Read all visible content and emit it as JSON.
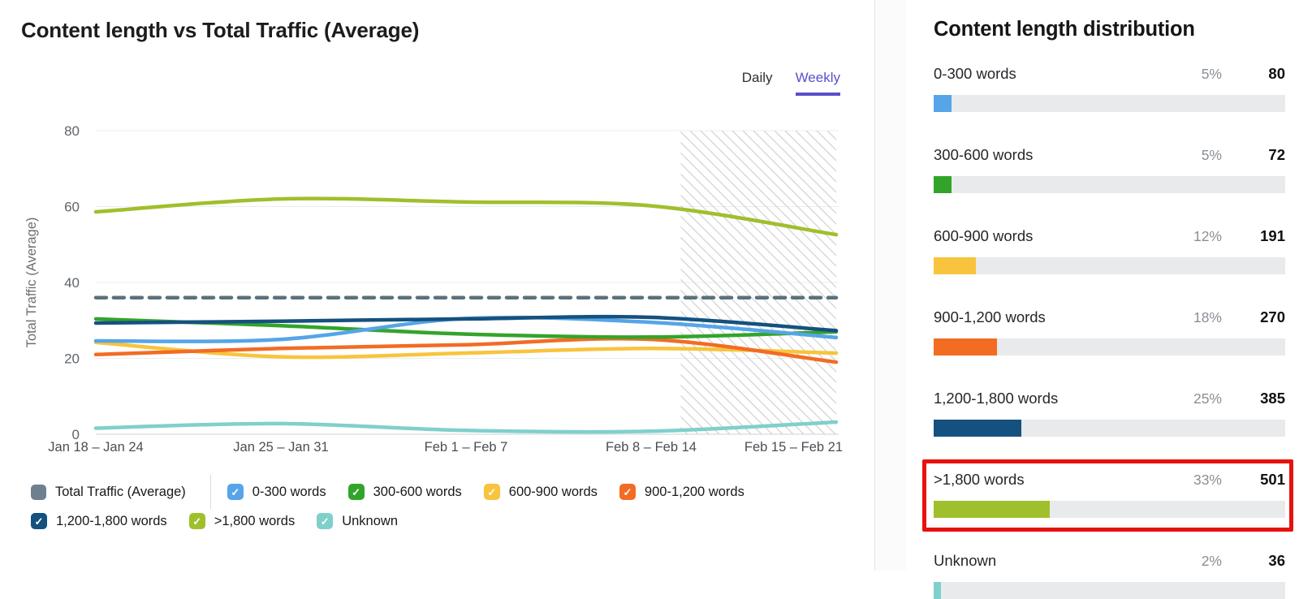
{
  "left_panel": {
    "title": "Content length vs Total Traffic (Average)",
    "toggle": {
      "daily": "Daily",
      "weekly": "Weekly",
      "selected": "Weekly",
      "accent_color": "#5a4fd0"
    }
  },
  "chart_data": {
    "type": "line",
    "title": "Content length vs Total Traffic (Average)",
    "xlabel": "",
    "ylabel": "Total Traffic (Average)",
    "ylim": [
      0,
      80
    ],
    "yticks": [
      0,
      20,
      40,
      60,
      80
    ],
    "grid": true,
    "legend_position": "bottom",
    "categories": [
      "Jan 18 – Jan 24",
      "Jan 25 – Jan 31",
      "Feb 1 – Feb 7",
      "Feb 8 – Feb 14",
      "Feb 15 – Feb 21"
    ],
    "projection_region": {
      "start_fraction": 0.79,
      "style": "diagonal-hatch",
      "hatch_color": "#d4d4d6"
    },
    "series": [
      {
        "name": "Total Traffic (Average)",
        "color": "#5d707c",
        "style": "dashed",
        "z": 8,
        "values": [
          36,
          36,
          36,
          36,
          36
        ]
      },
      {
        "name": "0-300 words",
        "color": "#55a5e8",
        "style": "solid",
        "z": 5,
        "values": [
          24.6,
          25,
          30.5,
          29.5,
          25.5
        ]
      },
      {
        "name": "300-600 words",
        "color": "#33a42b",
        "style": "solid",
        "z": 4,
        "values": [
          30.4,
          28.6,
          26.4,
          25.6,
          27
        ]
      },
      {
        "name": "600-900 words",
        "color": "#f8c43d",
        "style": "solid",
        "z": 2,
        "values": [
          24.2,
          20.4,
          21.4,
          22.6,
          21.4
        ]
      },
      {
        "name": "900-1,200 words",
        "color": "#f26c23",
        "style": "solid",
        "z": 3,
        "values": [
          21,
          22.6,
          23.6,
          25,
          19
        ]
      },
      {
        "name": "1,200-1,800 words",
        "color": "#15517f",
        "style": "solid",
        "z": 6,
        "values": [
          29.3,
          29.8,
          30.4,
          30.8,
          27.3
        ]
      },
      {
        "name": ">1,800 words",
        "color": "#a0bf2c",
        "style": "solid",
        "z": 7,
        "values": [
          58.6,
          62,
          61.2,
          60.2,
          52.6
        ]
      },
      {
        "name": "Unknown",
        "color": "#7fd0cb",
        "style": "solid",
        "z": 1,
        "values": [
          1.6,
          2.8,
          1,
          0.8,
          3.2
        ]
      }
    ]
  },
  "legend": {
    "rows": [
      [
        {
          "type": "swatch",
          "label": "Total Traffic (Average)",
          "color": "#6e8090",
          "divider_after": true
        },
        {
          "type": "checkbox",
          "label": "0-300 words",
          "color": "#55a5e8",
          "checked": true
        },
        {
          "type": "checkbox",
          "label": "300-600 words",
          "color": "#33a42b",
          "checked": true
        },
        {
          "type": "checkbox",
          "label": "600-900 words",
          "color": "#f8c43d",
          "checked": true
        },
        {
          "type": "checkbox",
          "label": "900-1,200 words",
          "color": "#f26c23",
          "checked": true
        }
      ],
      [
        {
          "type": "checkbox",
          "label": "1,200-1,800 words",
          "color": "#15517f",
          "checked": true
        },
        {
          "type": "checkbox",
          "label": ">1,800 words",
          "color": "#a0bf2c",
          "checked": true
        },
        {
          "type": "checkbox",
          "label": "Unknown",
          "color": "#7fd0cb",
          "checked": true
        }
      ]
    ],
    "check_glyph": "✓"
  },
  "distribution": {
    "title": "Content length distribution",
    "highlight_color": "#e8120c",
    "rows": [
      {
        "label": "0-300 words",
        "percent": "5%",
        "value": "80",
        "fill_pct": 5,
        "color": "#55a5e8",
        "highlighted": false
      },
      {
        "label": "300-600 words",
        "percent": "5%",
        "value": "72",
        "fill_pct": 5,
        "color": "#33a42b",
        "highlighted": false
      },
      {
        "label": "600-900 words",
        "percent": "12%",
        "value": "191",
        "fill_pct": 12,
        "color": "#f8c43d",
        "highlighted": false
      },
      {
        "label": "900-1,200 words",
        "percent": "18%",
        "value": "270",
        "fill_pct": 18,
        "color": "#f26c23",
        "highlighted": false
      },
      {
        "label": "1,200-1,800 words",
        "percent": "25%",
        "value": "385",
        "fill_pct": 25,
        "color": "#15517f",
        "highlighted": false
      },
      {
        "label": ">1,800 words",
        "percent": "33%",
        "value": "501",
        "fill_pct": 33,
        "color": "#a0bf2c",
        "highlighted": true
      },
      {
        "label": "Unknown",
        "percent": "2%",
        "value": "36",
        "fill_pct": 2,
        "color": "#7fd0cb",
        "highlighted": false
      }
    ]
  }
}
